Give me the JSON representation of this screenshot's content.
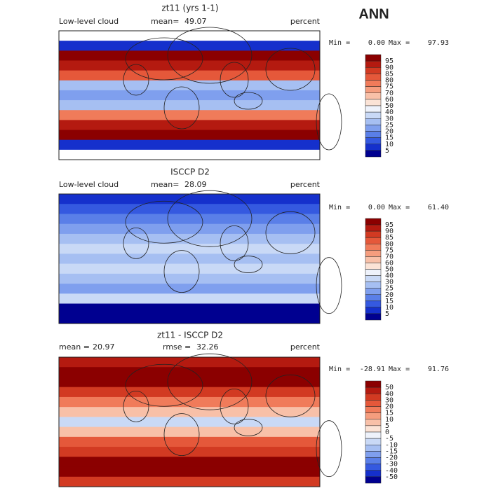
{
  "title": "ANN",
  "panels": [
    {
      "title": "zt11 (yrs 1-1)",
      "left_label": "Low-level cloud",
      "stats": [
        {
          "label": "mean=",
          "value": "49.07"
        }
      ],
      "units": "percent",
      "min_label": "Min =",
      "min": "0.00",
      "max_label": "Max =",
      "max": "97.93",
      "colorbar": {
        "labels": [
          95,
          90,
          85,
          80,
          75,
          70,
          60,
          50,
          40,
          30,
          25,
          20,
          15,
          10,
          5
        ],
        "colors": [
          "#8b0000",
          "#b41a10",
          "#d23a22",
          "#e5583a",
          "#f07b5a",
          "#f59d7e",
          "#f8c0a8",
          "#fbe3d6",
          "#eef2fb",
          "#c9d9f6",
          "#a6bff2",
          "#7f9fee",
          "#5a7fe8",
          "#3559e0",
          "#1530cc",
          "#000090"
        ]
      }
    },
    {
      "title": "ISCCP D2",
      "left_label": "Low-level cloud",
      "stats": [
        {
          "label": "mean=",
          "value": "28.09"
        }
      ],
      "units": "percent",
      "min_label": "Min =",
      "min": "0.00",
      "max_label": "Max =",
      "max": "61.40",
      "colorbar": {
        "labels": [
          95,
          90,
          85,
          80,
          75,
          70,
          60,
          50,
          40,
          30,
          25,
          20,
          15,
          10,
          5
        ],
        "colors": [
          "#8b0000",
          "#b41a10",
          "#d23a22",
          "#e5583a",
          "#f07b5a",
          "#f59d7e",
          "#f8c0a8",
          "#fbe3d6",
          "#eef2fb",
          "#c9d9f6",
          "#a6bff2",
          "#7f9fee",
          "#5a7fe8",
          "#3559e0",
          "#1530cc",
          "#000090"
        ]
      }
    },
    {
      "title": "zt11 - ISCCP D2",
      "left_label": null,
      "stats": [
        {
          "label": "mean =",
          "value": "20.97"
        },
        {
          "label": "rmse =",
          "value": "32.26"
        }
      ],
      "units": "percent",
      "min_label": "Min =",
      "min": "-28.91",
      "max_label": "Max =",
      "max": "91.76",
      "colorbar": {
        "labels": [
          50,
          40,
          30,
          20,
          15,
          10,
          5,
          0,
          -5,
          -10,
          -15,
          -20,
          -30,
          -40,
          -50
        ],
        "colors": [
          "#8b0000",
          "#b41a10",
          "#d23a22",
          "#e5583a",
          "#f07b5a",
          "#f59d7e",
          "#f8c0a8",
          "#fbe3d6",
          "#eef2fb",
          "#c9d9f6",
          "#a6bff2",
          "#7f9fee",
          "#5a7fe8",
          "#3559e0",
          "#1530cc",
          "#000090"
        ]
      }
    }
  ]
}
